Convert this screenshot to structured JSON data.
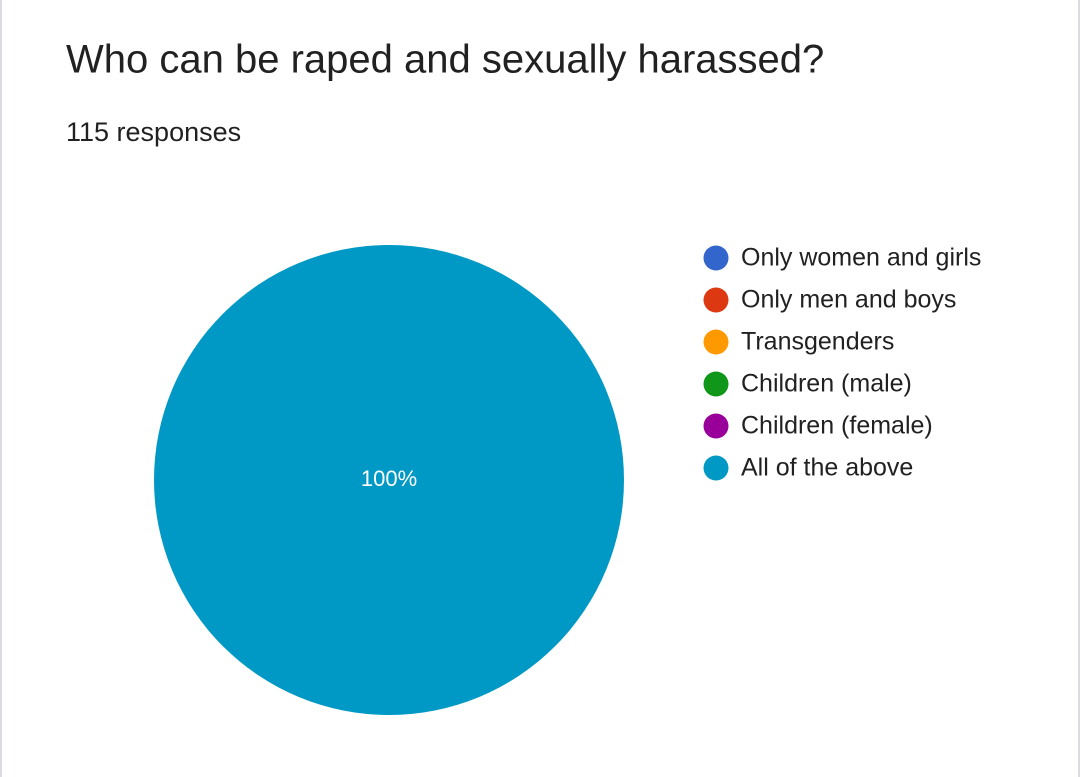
{
  "chart_data": {
    "type": "pie",
    "title": "Who can be raped and sexually harassed?",
    "subtitle": "115 responses",
    "categories": [
      "Only women and girls",
      "Only men and boys",
      "Transgenders",
      "Children (male)",
      "Children (female)",
      "All of the above"
    ],
    "values": [
      0,
      0,
      0,
      0,
      0,
      100
    ],
    "value_labels": [
      null,
      null,
      null,
      null,
      null,
      "100%"
    ],
    "colors": [
      "#3366cc",
      "#dc3912",
      "#ff9900",
      "#109618",
      "#990099",
      "#0099c6"
    ],
    "legend": "right"
  }
}
